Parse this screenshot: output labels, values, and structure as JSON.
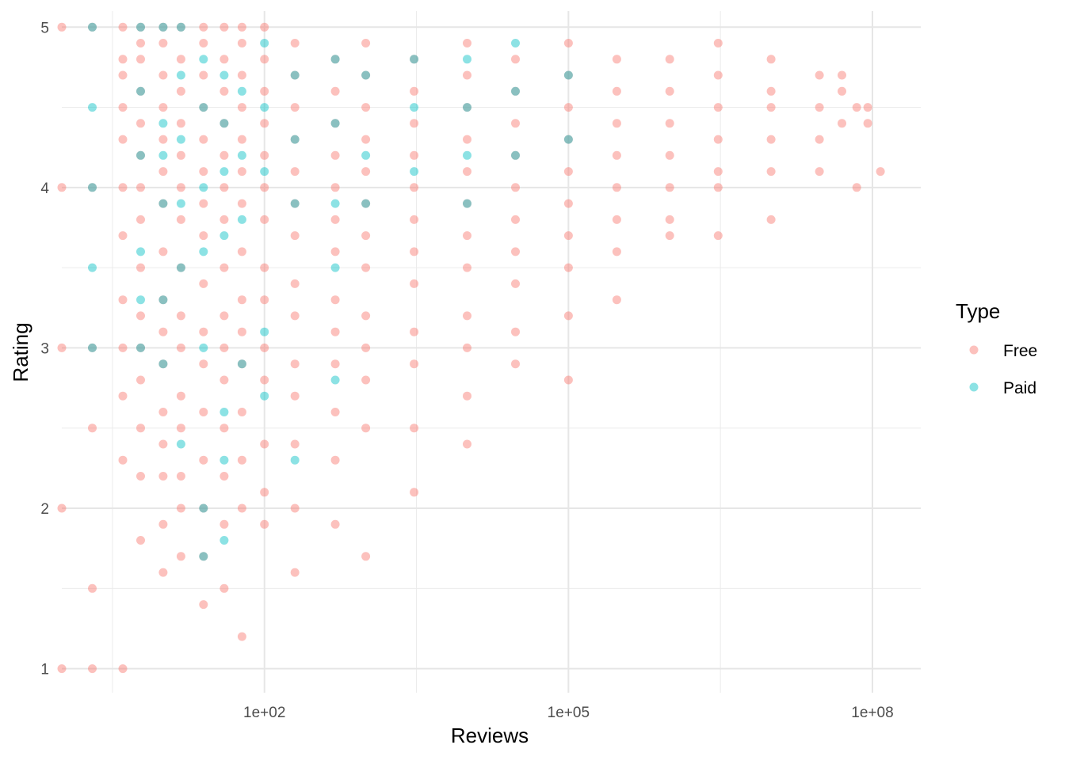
{
  "chart_data": {
    "type": "scatter",
    "xlabel": "Reviews",
    "ylabel": "Rating",
    "x_scale": "log10",
    "xlim": [
      1,
      300000000
    ],
    "ylim": [
      0.85,
      5.1
    ],
    "x_ticks": [
      {
        "value": 100,
        "label": "1e+02"
      },
      {
        "value": 100000,
        "label": "1e+05"
      },
      {
        "value": 100000000,
        "label": "1e+08"
      }
    ],
    "y_ticks": [
      {
        "value": 1,
        "label": "1"
      },
      {
        "value": 2,
        "label": "2"
      },
      {
        "value": 3,
        "label": "3"
      },
      {
        "value": 4,
        "label": "4"
      },
      {
        "value": 5,
        "label": "5"
      }
    ],
    "grid": true,
    "legend": {
      "title": "Type",
      "position": "right"
    },
    "series": [
      {
        "name": "Free",
        "color": "#F8766D",
        "points": [
          [
            1,
            5
          ],
          [
            1,
            4
          ],
          [
            1,
            3
          ],
          [
            1,
            2
          ],
          [
            1,
            1
          ],
          [
            2,
            5
          ],
          [
            2,
            4
          ],
          [
            2,
            3
          ],
          [
            2,
            2.5
          ],
          [
            2,
            1.5
          ],
          [
            2,
            1
          ],
          [
            4,
            5
          ],
          [
            4,
            4.8
          ],
          [
            4,
            4.7
          ],
          [
            4,
            4.5
          ],
          [
            4,
            4.3
          ],
          [
            4,
            4
          ],
          [
            4,
            3.7
          ],
          [
            4,
            3.3
          ],
          [
            4,
            3
          ],
          [
            4,
            2.7
          ],
          [
            4,
            2.3
          ],
          [
            4,
            1
          ],
          [
            6,
            5
          ],
          [
            6,
            4.9
          ],
          [
            6,
            4.8
          ],
          [
            6,
            4.6
          ],
          [
            6,
            4.4
          ],
          [
            6,
            4.2
          ],
          [
            6,
            4
          ],
          [
            6,
            3.8
          ],
          [
            6,
            3.5
          ],
          [
            6,
            3.2
          ],
          [
            6,
            3
          ],
          [
            6,
            2.8
          ],
          [
            6,
            2.5
          ],
          [
            6,
            2.2
          ],
          [
            6,
            1.8
          ],
          [
            10,
            5
          ],
          [
            10,
            4.9
          ],
          [
            10,
            4.7
          ],
          [
            10,
            4.5
          ],
          [
            10,
            4.3
          ],
          [
            10,
            4.1
          ],
          [
            10,
            3.9
          ],
          [
            10,
            3.6
          ],
          [
            10,
            3.3
          ],
          [
            10,
            3.1
          ],
          [
            10,
            2.9
          ],
          [
            10,
            2.6
          ],
          [
            10,
            2.4
          ],
          [
            10,
            2.2
          ],
          [
            10,
            1.9
          ],
          [
            10,
            1.6
          ],
          [
            15,
            5
          ],
          [
            15,
            4.8
          ],
          [
            15,
            4.6
          ],
          [
            15,
            4.4
          ],
          [
            15,
            4.2
          ],
          [
            15,
            4
          ],
          [
            15,
            3.8
          ],
          [
            15,
            3.5
          ],
          [
            15,
            3.2
          ],
          [
            15,
            3
          ],
          [
            15,
            2.7
          ],
          [
            15,
            2.5
          ],
          [
            15,
            2.2
          ],
          [
            15,
            2
          ],
          [
            15,
            1.7
          ],
          [
            25,
            5
          ],
          [
            25,
            4.9
          ],
          [
            25,
            4.7
          ],
          [
            25,
            4.5
          ],
          [
            25,
            4.3
          ],
          [
            25,
            4.1
          ],
          [
            25,
            3.9
          ],
          [
            25,
            3.7
          ],
          [
            25,
            3.4
          ],
          [
            25,
            3.1
          ],
          [
            25,
            2.9
          ],
          [
            25,
            2.6
          ],
          [
            25,
            2.3
          ],
          [
            25,
            2
          ],
          [
            25,
            1.7
          ],
          [
            25,
            1.4
          ],
          [
            40,
            5
          ],
          [
            40,
            4.8
          ],
          [
            40,
            4.6
          ],
          [
            40,
            4.4
          ],
          [
            40,
            4.2
          ],
          [
            40,
            4
          ],
          [
            40,
            3.8
          ],
          [
            40,
            3.5
          ],
          [
            40,
            3.2
          ],
          [
            40,
            3
          ],
          [
            40,
            2.8
          ],
          [
            40,
            2.5
          ],
          [
            40,
            2.2
          ],
          [
            40,
            1.9
          ],
          [
            40,
            1.5
          ],
          [
            60,
            5
          ],
          [
            60,
            4.9
          ],
          [
            60,
            4.7
          ],
          [
            60,
            4.5
          ],
          [
            60,
            4.3
          ],
          [
            60,
            4.1
          ],
          [
            60,
            3.9
          ],
          [
            60,
            3.6
          ],
          [
            60,
            3.3
          ],
          [
            60,
            3.1
          ],
          [
            60,
            2.9
          ],
          [
            60,
            2.6
          ],
          [
            60,
            2.3
          ],
          [
            60,
            2
          ],
          [
            60,
            1.2
          ],
          [
            100,
            5
          ],
          [
            100,
            4.8
          ],
          [
            100,
            4.6
          ],
          [
            100,
            4.4
          ],
          [
            100,
            4.2
          ],
          [
            100,
            4
          ],
          [
            100,
            3.8
          ],
          [
            100,
            3.5
          ],
          [
            100,
            3.3
          ],
          [
            100,
            3
          ],
          [
            100,
            2.8
          ],
          [
            100,
            2.4
          ],
          [
            100,
            2.1
          ],
          [
            100,
            1.9
          ],
          [
            200,
            4.9
          ],
          [
            200,
            4.7
          ],
          [
            200,
            4.5
          ],
          [
            200,
            4.3
          ],
          [
            200,
            4.1
          ],
          [
            200,
            3.9
          ],
          [
            200,
            3.7
          ],
          [
            200,
            3.4
          ],
          [
            200,
            3.2
          ],
          [
            200,
            2.9
          ],
          [
            200,
            2.7
          ],
          [
            200,
            2.4
          ],
          [
            200,
            2
          ],
          [
            200,
            1.6
          ],
          [
            500,
            4.8
          ],
          [
            500,
            4.6
          ],
          [
            500,
            4.4
          ],
          [
            500,
            4.2
          ],
          [
            500,
            4
          ],
          [
            500,
            3.8
          ],
          [
            500,
            3.6
          ],
          [
            500,
            3.3
          ],
          [
            500,
            3.1
          ],
          [
            500,
            2.9
          ],
          [
            500,
            2.6
          ],
          [
            500,
            2.3
          ],
          [
            500,
            1.9
          ],
          [
            1000,
            4.9
          ],
          [
            1000,
            4.7
          ],
          [
            1000,
            4.5
          ],
          [
            1000,
            4.3
          ],
          [
            1000,
            4.1
          ],
          [
            1000,
            3.9
          ],
          [
            1000,
            3.7
          ],
          [
            1000,
            3.5
          ],
          [
            1000,
            3.2
          ],
          [
            1000,
            3
          ],
          [
            1000,
            2.8
          ],
          [
            1000,
            2.5
          ],
          [
            1000,
            1.7
          ],
          [
            3000,
            4.8
          ],
          [
            3000,
            4.6
          ],
          [
            3000,
            4.4
          ],
          [
            3000,
            4.2
          ],
          [
            3000,
            4
          ],
          [
            3000,
            3.8
          ],
          [
            3000,
            3.6
          ],
          [
            3000,
            3.4
          ],
          [
            3000,
            3.1
          ],
          [
            3000,
            2.9
          ],
          [
            3000,
            2.5
          ],
          [
            3000,
            2.1
          ],
          [
            10000,
            4.9
          ],
          [
            10000,
            4.7
          ],
          [
            10000,
            4.5
          ],
          [
            10000,
            4.3
          ],
          [
            10000,
            4.1
          ],
          [
            10000,
            3.9
          ],
          [
            10000,
            3.7
          ],
          [
            10000,
            3.5
          ],
          [
            10000,
            3.2
          ],
          [
            10000,
            3
          ],
          [
            10000,
            2.7
          ],
          [
            10000,
            2.4
          ],
          [
            30000,
            4.8
          ],
          [
            30000,
            4.6
          ],
          [
            30000,
            4.4
          ],
          [
            30000,
            4.2
          ],
          [
            30000,
            4
          ],
          [
            30000,
            3.8
          ],
          [
            30000,
            3.6
          ],
          [
            30000,
            3.4
          ],
          [
            30000,
            3.1
          ],
          [
            30000,
            2.9
          ],
          [
            100000,
            4.9
          ],
          [
            100000,
            4.7
          ],
          [
            100000,
            4.5
          ],
          [
            100000,
            4.3
          ],
          [
            100000,
            4.1
          ],
          [
            100000,
            3.9
          ],
          [
            100000,
            3.7
          ],
          [
            100000,
            3.5
          ],
          [
            100000,
            3.2
          ],
          [
            100000,
            2.8
          ],
          [
            300000,
            4.8
          ],
          [
            300000,
            4.6
          ],
          [
            300000,
            4.4
          ],
          [
            300000,
            4.2
          ],
          [
            300000,
            4
          ],
          [
            300000,
            3.8
          ],
          [
            300000,
            3.6
          ],
          [
            300000,
            3.3
          ],
          [
            1000000,
            4.8
          ],
          [
            1000000,
            4.6
          ],
          [
            1000000,
            4.4
          ],
          [
            1000000,
            4.2
          ],
          [
            1000000,
            4
          ],
          [
            1000000,
            3.8
          ],
          [
            1000000,
            3.7
          ],
          [
            3000000,
            4.9
          ],
          [
            3000000,
            4.7
          ],
          [
            3000000,
            4.5
          ],
          [
            3000000,
            4.3
          ],
          [
            3000000,
            4.1
          ],
          [
            3000000,
            4
          ],
          [
            3000000,
            3.7
          ],
          [
            10000000,
            4.8
          ],
          [
            10000000,
            4.6
          ],
          [
            10000000,
            4.5
          ],
          [
            10000000,
            4.3
          ],
          [
            10000000,
            4.1
          ],
          [
            10000000,
            3.8
          ],
          [
            30000000,
            4.7
          ],
          [
            30000000,
            4.5
          ],
          [
            30000000,
            4.3
          ],
          [
            30000000,
            4.1
          ],
          [
            50000000,
            4.7
          ],
          [
            50000000,
            4.6
          ],
          [
            50000000,
            4.4
          ],
          [
            70000000,
            4.5
          ],
          [
            70000000,
            4
          ],
          [
            90000000,
            4.5
          ],
          [
            90000000,
            4.4
          ],
          [
            120000000,
            4.1
          ]
        ]
      },
      {
        "name": "Paid",
        "color": "#00BFC4",
        "points": [
          [
            2,
            5
          ],
          [
            2,
            4.5
          ],
          [
            2,
            4
          ],
          [
            2,
            3.5
          ],
          [
            2,
            3
          ],
          [
            6,
            5
          ],
          [
            6,
            4.6
          ],
          [
            6,
            4.2
          ],
          [
            6,
            3.6
          ],
          [
            6,
            3.3
          ],
          [
            6,
            3
          ],
          [
            10,
            5
          ],
          [
            10,
            4.4
          ],
          [
            10,
            4.2
          ],
          [
            10,
            3.9
          ],
          [
            10,
            3.3
          ],
          [
            10,
            2.9
          ],
          [
            15,
            5
          ],
          [
            15,
            4.7
          ],
          [
            15,
            4.3
          ],
          [
            15,
            3.9
          ],
          [
            15,
            3.5
          ],
          [
            15,
            2.4
          ],
          [
            25,
            4.8
          ],
          [
            25,
            4.5
          ],
          [
            25,
            4
          ],
          [
            25,
            3.6
          ],
          [
            25,
            3
          ],
          [
            25,
            2
          ],
          [
            25,
            1.7
          ],
          [
            40,
            4.7
          ],
          [
            40,
            4.4
          ],
          [
            40,
            4.1
          ],
          [
            40,
            3.7
          ],
          [
            40,
            2.6
          ],
          [
            40,
            2.3
          ],
          [
            40,
            1.8
          ],
          [
            60,
            4.6
          ],
          [
            60,
            4.2
          ],
          [
            60,
            3.8
          ],
          [
            60,
            2.9
          ],
          [
            100,
            4.9
          ],
          [
            100,
            4.5
          ],
          [
            100,
            4.1
          ],
          [
            100,
            3.1
          ],
          [
            100,
            2.7
          ],
          [
            200,
            4.7
          ],
          [
            200,
            4.3
          ],
          [
            200,
            3.9
          ],
          [
            200,
            2.3
          ],
          [
            500,
            4.8
          ],
          [
            500,
            4.4
          ],
          [
            500,
            3.9
          ],
          [
            500,
            3.5
          ],
          [
            500,
            2.8
          ],
          [
            1000,
            4.7
          ],
          [
            1000,
            4.2
          ],
          [
            1000,
            3.9
          ],
          [
            3000,
            4.8
          ],
          [
            3000,
            4.5
          ],
          [
            3000,
            4.1
          ],
          [
            10000,
            4.8
          ],
          [
            10000,
            4.5
          ],
          [
            10000,
            4.2
          ],
          [
            10000,
            3.9
          ],
          [
            30000,
            4.9
          ],
          [
            30000,
            4.6
          ],
          [
            30000,
            4.2
          ],
          [
            100000,
            4.7
          ],
          [
            100000,
            4.3
          ]
        ]
      }
    ]
  }
}
